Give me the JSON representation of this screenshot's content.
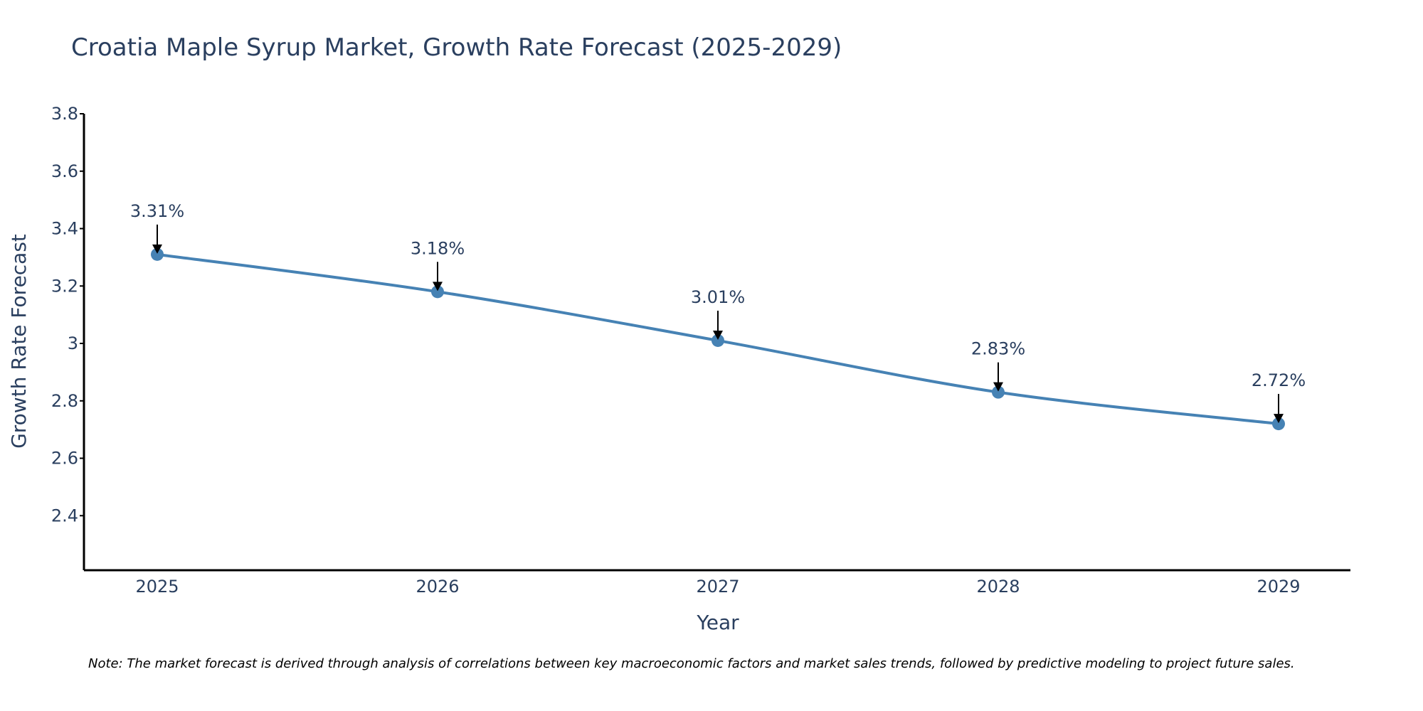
{
  "chart_data": {
    "type": "line",
    "title": "Croatia Maple Syrup Market, Growth Rate Forecast (2025-2029)",
    "xlabel": "Year",
    "ylabel": "Growth Rate Forecast",
    "categories": [
      "2025",
      "2026",
      "2027",
      "2028",
      "2029"
    ],
    "values": [
      3.31,
      3.18,
      3.01,
      2.83,
      2.72
    ],
    "labels": [
      "3.31%",
      "3.18%",
      "3.01%",
      "2.83%",
      "2.72%"
    ],
    "ylim": [
      2.21,
      3.8
    ],
    "yticks": [
      2.4,
      2.6,
      2.8,
      3,
      3.2,
      3.4,
      3.6,
      3.8
    ],
    "ytick_labels": [
      "2.4",
      "2.6",
      "2.8",
      "3",
      "3.2",
      "3.4",
      "3.6",
      "3.8"
    ],
    "grid": false,
    "line_color": "#4682b4",
    "note": "Note: The market forecast is derived through analysis of correlations between key macroeconomic factors and market sales trends, followed by predictive modeling to project future sales."
  }
}
